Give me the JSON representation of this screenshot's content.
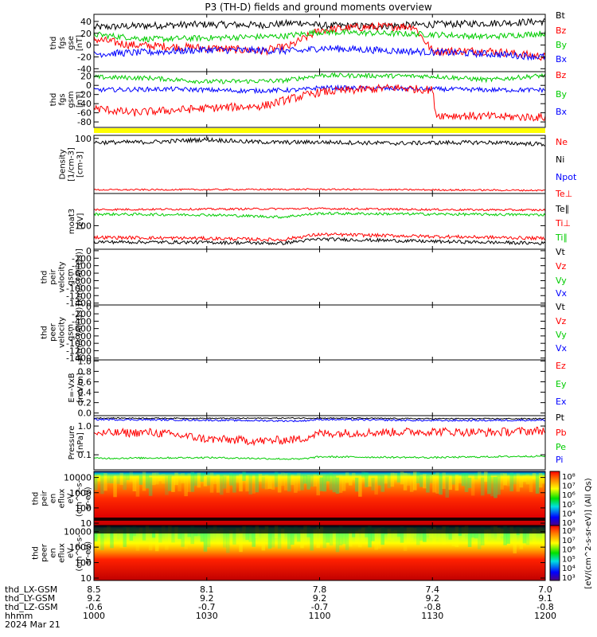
{
  "title": "P3 (TH-D) fields and ground moments overview",
  "colors": {
    "black": "#000000",
    "red": "#ff0000",
    "green": "#00cc00",
    "blue": "#0000ff",
    "yellow": "#ffff00",
    "background": "#ffffff"
  },
  "chart_data": [
    {
      "type": "line",
      "panel": "fgs-gse",
      "ylabel_lines": [
        "thd",
        "fgs",
        "gse",
        "[nT]"
      ],
      "yticks": [
        "40",
        "20",
        "0",
        "-20",
        "-40"
      ],
      "ylim": [
        -45,
        52
      ],
      "legend": [
        {
          "name": "Bt",
          "color": "#000000"
        },
        {
          "name": "Bz",
          "color": "#ff0000"
        },
        {
          "name": "By",
          "color": "#00cc00"
        },
        {
          "name": "Bx",
          "color": "#0000ff"
        }
      ],
      "series": [
        {
          "name": "Bt",
          "x": [
            "10:00",
            "10:15",
            "10:30",
            "10:45",
            "10:55",
            "11:00",
            "11:15",
            "11:30",
            "11:45",
            "12:00"
          ],
          "values": [
            30,
            33,
            35,
            34,
            38,
            33,
            32,
            35,
            37,
            40
          ],
          "noise": 6
        },
        {
          "name": "Bz",
          "x": [
            "10:00",
            "10:10",
            "10:30",
            "10:45",
            "10:52",
            "11:00",
            "11:10",
            "11:25",
            "11:30",
            "11:45",
            "12:00"
          ],
          "values": [
            10,
            0,
            -5,
            -10,
            -2,
            25,
            30,
            32,
            -10,
            -10,
            -20
          ],
          "noise": 7
        },
        {
          "name": "By",
          "x": [
            "10:00",
            "10:15",
            "10:30",
            "10:50",
            "11:00",
            "11:30",
            "11:45",
            "12:00"
          ],
          "values": [
            18,
            10,
            12,
            15,
            22,
            18,
            14,
            20
          ],
          "noise": 5
        },
        {
          "name": "Bx",
          "x": [
            "10:00",
            "10:15",
            "10:30",
            "10:55",
            "11:00",
            "11:30",
            "11:45",
            "12:00"
          ],
          "values": [
            -15,
            -12,
            -8,
            -10,
            -5,
            -12,
            -15,
            -20
          ],
          "noise": 6
        }
      ]
    },
    {
      "type": "line",
      "panel": "fgs-gsm",
      "ylabel_lines": [
        "thd",
        "fgs",
        "gsm",
        "[nT]"
      ],
      "yticks": [
        "20",
        "0",
        "-20",
        "-40",
        "-60",
        "-80"
      ],
      "ylim": [
        -92,
        30
      ],
      "legend": [
        {
          "name": "Bz",
          "color": "#ff0000"
        },
        {
          "name": "By",
          "color": "#00cc00"
        },
        {
          "name": "Bx",
          "color": "#0000ff"
        }
      ],
      "series": [
        {
          "name": "By",
          "x": [
            "10:00",
            "10:15",
            "10:30",
            "10:50",
            "11:00",
            "11:30",
            "11:45",
            "12:00"
          ],
          "values": [
            18,
            16,
            8,
            10,
            22,
            20,
            12,
            22
          ],
          "noise": 5
        },
        {
          "name": "Bx",
          "x": [
            "10:00",
            "10:20",
            "10:40",
            "10:55",
            "11:00",
            "11:30",
            "11:45",
            "12:00"
          ],
          "values": [
            -10,
            -8,
            -12,
            -10,
            -5,
            -8,
            -10,
            -10
          ],
          "noise": 5
        },
        {
          "name": "Bz",
          "x": [
            "10:00",
            "10:10",
            "10:30",
            "10:45",
            "10:52",
            "11:00",
            "11:10",
            "11:20",
            "11:30",
            "11:31",
            "11:45",
            "12:00"
          ],
          "values": [
            -50,
            -60,
            -50,
            -45,
            -30,
            -15,
            -10,
            -5,
            -10,
            -65,
            -68,
            -70
          ],
          "noise": 9
        }
      ]
    },
    {
      "type": "line",
      "panel": "density",
      "ylabel_lines": [
        "Density",
        "[1/cm-3]",
        "[cm-3]"
      ],
      "yticks": [
        "100"
      ],
      "ylog": true,
      "ylim": [
        0.8,
        130
      ],
      "legend": [
        {
          "name": "Ne",
          "color": "#ff0000"
        },
        {
          "name": "Ni",
          "color": "#000000"
        },
        {
          "name": "Npot",
          "color": "#0000ff"
        }
      ],
      "series": [
        {
          "name": "Ni",
          "x": [
            "10:00",
            "10:15",
            "10:30",
            "10:40",
            "10:50",
            "11:00",
            "11:20",
            "11:30",
            "11:45",
            "12:00"
          ],
          "values": [
            70,
            72,
            90,
            75,
            70,
            72,
            65,
            68,
            70,
            60
          ],
          "noise": 0.08
        },
        {
          "name": "Ne",
          "x": [
            "10:00",
            "11:00",
            "12:00"
          ],
          "values": [
            1.1,
            1.15,
            1.05
          ],
          "noise": 0.03
        }
      ]
    },
    {
      "type": "line",
      "panel": "temperature",
      "ylabel_lines": [
        "moat3",
        "[eV]"
      ],
      "yticks": [
        "100"
      ],
      "ylog": true,
      "ylim": [
        20,
        900
      ],
      "legend": [
        {
          "name": "Te⊥",
          "color": "#ff0000"
        },
        {
          "name": "Te∥",
          "color": "#000000"
        },
        {
          "name": "Ti⊥",
          "color": "#ff0000"
        },
        {
          "name": "Ti∥",
          "color": "#00cc00"
        }
      ],
      "series": [
        {
          "name": "Te⊥",
          "x": [
            "10:00",
            "10:30",
            "11:00",
            "11:30",
            "12:00"
          ],
          "values": [
            300,
            310,
            320,
            300,
            290
          ],
          "noise": 0.03
        },
        {
          "name": "Ti∥",
          "x": [
            "10:00",
            "10:30",
            "10:50",
            "11:00",
            "11:30",
            "12:00"
          ],
          "values": [
            220,
            210,
            180,
            230,
            220,
            210
          ],
          "noise": 0.04
        },
        {
          "name": "Ti⊥",
          "x": [
            "10:00",
            "10:30",
            "10:50",
            "11:00",
            "11:30",
            "12:00"
          ],
          "values": [
            45,
            42,
            38,
            55,
            48,
            42
          ],
          "noise": 0.05
        },
        {
          "name": "Te∥",
          "x": [
            "10:00",
            "10:30",
            "10:50",
            "11:00",
            "11:30",
            "12:00"
          ],
          "values": [
            33,
            32,
            30,
            40,
            34,
            30
          ],
          "noise": 0.05
        }
      ]
    },
    {
      "type": "line",
      "panel": "peir-velocity",
      "ylabel_lines": [
        "thd",
        "peir",
        "velocity",
        "gsm",
        "[km/s (All Qs)]"
      ],
      "yticks": [
        "0",
        "-200",
        "-400",
        "-600",
        "-800",
        "-1000",
        "-1200",
        "-1400"
      ],
      "ylim": [
        -1450,
        40
      ],
      "legend": [
        {
          "name": "Vt",
          "color": "#000000"
        },
        {
          "name": "Vz",
          "color": "#ff0000"
        },
        {
          "name": "Vy",
          "color": "#00cc00"
        },
        {
          "name": "Vx",
          "color": "#0000ff"
        }
      ],
      "series": []
    },
    {
      "type": "line",
      "panel": "peer-velocity",
      "ylabel_lines": [
        "thd",
        "peer",
        "velocity",
        "gsm",
        "[km/s (All Qs)]"
      ],
      "yticks": [
        "0",
        "-200",
        "-400",
        "-600",
        "-800",
        "-1000",
        "-1200",
        "-1400"
      ],
      "ylim": [
        -1450,
        40
      ],
      "legend": [
        {
          "name": "Vt",
          "color": "#000000"
        },
        {
          "name": "Vz",
          "color": "#ff0000"
        },
        {
          "name": "Vy",
          "color": "#00cc00"
        },
        {
          "name": "Vx",
          "color": "#0000ff"
        }
      ],
      "series": []
    },
    {
      "type": "line",
      "panel": "efield",
      "ylabel_lines": [
        "E=-VxB",
        "[mV/m]"
      ],
      "yticks": [
        "1.0",
        "0.8",
        "0.6",
        "0.4",
        "0.2",
        "0.0"
      ],
      "ylim": [
        -0.05,
        1.02
      ],
      "legend": [
        {
          "name": "Ez",
          "color": "#ff0000"
        },
        {
          "name": "Ey",
          "color": "#00cc00"
        },
        {
          "name": "Ex",
          "color": "#0000ff"
        }
      ],
      "series": []
    },
    {
      "type": "line",
      "panel": "pressure",
      "ylabel_lines": [
        "Pressure",
        "[nPa]"
      ],
      "yticks": [
        "1.0",
        "0.1"
      ],
      "ylog": true,
      "ylim": [
        0.03,
        2.3
      ],
      "legend": [
        {
          "name": "Pt",
          "color": "#000000"
        },
        {
          "name": "Pb",
          "color": "#ff0000"
        },
        {
          "name": "Pe",
          "color": "#00cc00"
        },
        {
          "name": "Pi",
          "color": "#0000ff"
        }
      ],
      "series": [
        {
          "name": "Pt",
          "x": [
            "10:00",
            "10:30",
            "11:00",
            "11:30",
            "12:00"
          ],
          "values": [
            1.9,
            1.85,
            1.9,
            1.8,
            1.8
          ],
          "noise": 0.02
        },
        {
          "name": "Pi",
          "x": [
            "10:00",
            "10:30",
            "10:55",
            "11:00",
            "11:30",
            "12:00"
          ],
          "values": [
            1.7,
            1.6,
            1.5,
            1.7,
            1.55,
            1.6
          ],
          "noise": 0.03
        },
        {
          "name": "Pb",
          "x": [
            "10:00",
            "10:15",
            "10:30",
            "10:45",
            "10:55",
            "11:00",
            "11:30",
            "11:45",
            "12:00"
          ],
          "values": [
            0.55,
            0.6,
            0.35,
            0.3,
            0.35,
            0.55,
            0.65,
            0.6,
            0.7
          ],
          "noise": 0.15
        },
        {
          "name": "Pe",
          "x": [
            "10:00",
            "10:30",
            "10:55",
            "11:00",
            "11:30",
            "12:00"
          ],
          "values": [
            0.075,
            0.08,
            0.07,
            0.085,
            0.08,
            0.09
          ],
          "noise": 0.03
        }
      ]
    },
    {
      "type": "heatmap",
      "panel": "peir-eflux",
      "ylabel_lines": [
        "thd",
        "peir",
        "en",
        "eflux",
        "eV",
        "(cm^2-s-",
        "sr-eV)"
      ],
      "yticks": [
        "10000",
        "1000",
        "100",
        "10"
      ],
      "ylog": true,
      "ylim": [
        7,
        25000
      ]
    },
    {
      "type": "heatmap",
      "panel": "peer-eflux",
      "ylabel_lines": [
        "thd",
        "peer",
        "en",
        "eflux",
        "eV",
        "(cm^2-s-",
        "sr-eV)"
      ],
      "yticks": [
        "10000",
        "1000",
        "100",
        "10"
      ],
      "ylog": true,
      "ylim": [
        7,
        25000
      ]
    }
  ],
  "colorbar": {
    "ticks": [
      "10⁸",
      "10⁷",
      "10⁶",
      "10⁵",
      "10⁴",
      "10³",
      "10⁸",
      "10⁷",
      "10⁶",
      "10⁵",
      "10⁴",
      "10³"
    ],
    "label": "[eV/(cm^2-s-sr-eV)] (All Qs)"
  },
  "xaxis": {
    "row_labels": [
      "thd_LX-GSM",
      "thd_LY-GSM",
      "thd_LZ-GSM",
      "hhmm",
      "2024 Mar 21"
    ],
    "columns": [
      [
        "8.5",
        "9.2",
        "-0.6",
        "1000"
      ],
      [
        "8.1",
        "9.2",
        "-0.7",
        "1030"
      ],
      [
        "7.8",
        "9.2",
        "-0.7",
        "1100"
      ],
      [
        "7.4",
        "9.2",
        "-0.8",
        "1130"
      ],
      [
        "7.0",
        "9.1",
        "-0.8",
        "1200"
      ]
    ]
  }
}
